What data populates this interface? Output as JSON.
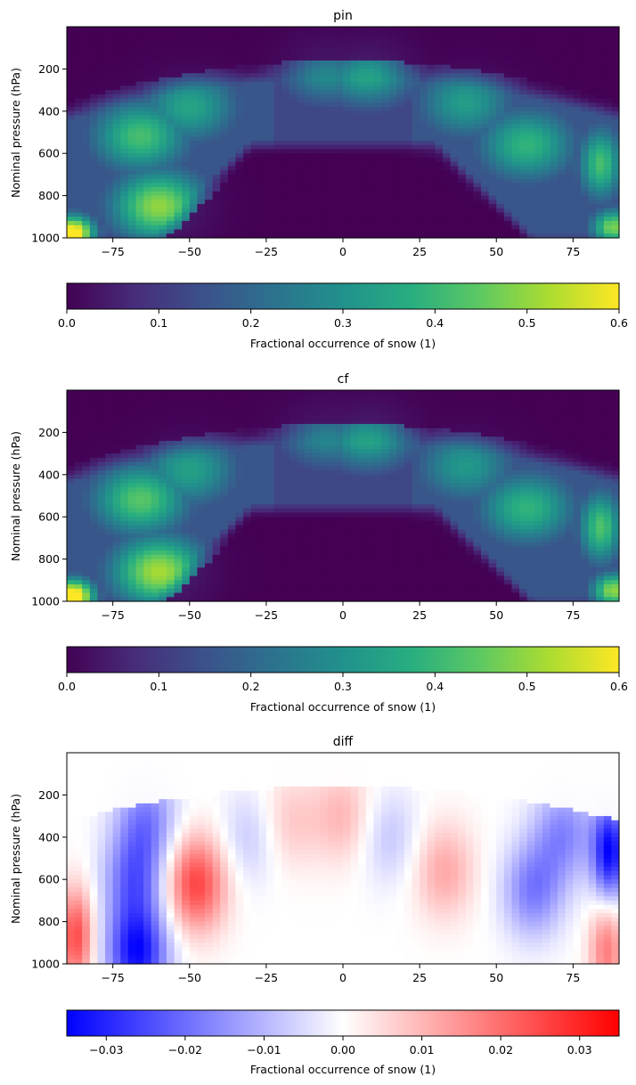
{
  "chart_data": [
    {
      "type": "heatmap",
      "title": "pin",
      "ylabel": "Nominal pressure (hPa)",
      "xlabel": "",
      "x_range": [
        -90,
        90
      ],
      "y_range": [
        0,
        1000
      ],
      "y_inverted": true,
      "x_ticks": [
        -75,
        -50,
        -25,
        0,
        25,
        50,
        75
      ],
      "x_tick_labels": [
        "−75",
        "−50",
        "−25",
        "0",
        "25",
        "50",
        "75"
      ],
      "y_ticks": [
        200,
        400,
        600,
        800,
        1000
      ],
      "y_tick_labels": [
        "200",
        "400",
        "600",
        "800",
        "1000"
      ],
      "colormap": "viridis",
      "colorbar": {
        "label": "Fractional occurrence of snow (1)",
        "range": [
          0.0,
          0.6
        ],
        "ticks": [
          0.0,
          0.1,
          0.2,
          0.3,
          0.4,
          0.5,
          0.6
        ],
        "tick_labels": [
          "0.0",
          "0.1",
          "0.2",
          "0.3",
          "0.4",
          "0.5",
          "0.6"
        ],
        "orientation": "horizontal"
      },
      "features": [
        {
          "lat": -88,
          "p": 980,
          "value": 0.58
        },
        {
          "lat": -60,
          "p": 850,
          "value": 0.42
        },
        {
          "lat": -66,
          "p": 520,
          "value": 0.34
        },
        {
          "lat": -50,
          "p": 380,
          "value": 0.27
        },
        {
          "lat": 8,
          "p": 210,
          "value": 0.3
        },
        {
          "lat": -5,
          "p": 200,
          "value": 0.24
        },
        {
          "lat": 40,
          "p": 360,
          "value": 0.25
        },
        {
          "lat": 60,
          "p": 560,
          "value": 0.31
        },
        {
          "lat": 84,
          "p": 650,
          "value": 0.34
        },
        {
          "lat": 88,
          "p": 950,
          "value": 0.4
        }
      ]
    },
    {
      "type": "heatmap",
      "title": "cf",
      "ylabel": "Nominal pressure (hPa)",
      "xlabel": "",
      "x_range": [
        -90,
        90
      ],
      "y_range": [
        0,
        1000
      ],
      "y_inverted": true,
      "x_ticks": [
        -75,
        -50,
        -25,
        0,
        25,
        50,
        75
      ],
      "x_tick_labels": [
        "−75",
        "−50",
        "−25",
        "0",
        "25",
        "50",
        "75"
      ],
      "y_ticks": [
        200,
        400,
        600,
        800,
        1000
      ],
      "y_tick_labels": [
        "200",
        "400",
        "600",
        "800",
        "1000"
      ],
      "colormap": "viridis",
      "colorbar": {
        "label": "Fractional occurrence of snow (1)",
        "range": [
          0.0,
          0.6
        ],
        "ticks": [
          0.0,
          0.1,
          0.2,
          0.3,
          0.4,
          0.5,
          0.6
        ],
        "tick_labels": [
          "0.0",
          "0.1",
          "0.2",
          "0.3",
          "0.4",
          "0.5",
          "0.6"
        ],
        "orientation": "horizontal"
      },
      "features": [
        {
          "lat": -88,
          "p": 980,
          "value": 0.6
        },
        {
          "lat": -60,
          "p": 860,
          "value": 0.44
        },
        {
          "lat": -66,
          "p": 520,
          "value": 0.36
        },
        {
          "lat": -50,
          "p": 380,
          "value": 0.26
        },
        {
          "lat": 8,
          "p": 210,
          "value": 0.3
        },
        {
          "lat": -5,
          "p": 200,
          "value": 0.23
        },
        {
          "lat": 40,
          "p": 360,
          "value": 0.24
        },
        {
          "lat": 60,
          "p": 560,
          "value": 0.31
        },
        {
          "lat": 84,
          "p": 650,
          "value": 0.35
        },
        {
          "lat": 88,
          "p": 950,
          "value": 0.42
        }
      ]
    },
    {
      "type": "heatmap",
      "title": "diff",
      "ylabel": "Nominal pressure (hPa)",
      "xlabel": "",
      "x_range": [
        -90,
        90
      ],
      "y_range": [
        0,
        1000
      ],
      "y_inverted": true,
      "x_ticks": [
        -75,
        -50,
        -25,
        0,
        25,
        50,
        75
      ],
      "x_tick_labels": [
        "−75",
        "−50",
        "−25",
        "0",
        "25",
        "50",
        "75"
      ],
      "y_ticks": [
        200,
        400,
        600,
        800,
        1000
      ],
      "y_tick_labels": [
        "200",
        "400",
        "600",
        "800",
        "1000"
      ],
      "colormap": "bwr",
      "colorbar": {
        "label": "Fractional occurrence of snow (1)",
        "range": [
          -0.035,
          0.035
        ],
        "ticks": [
          -0.03,
          -0.02,
          -0.01,
          0.0,
          0.01,
          0.02,
          0.03
        ],
        "tick_labels": [
          "−0.03",
          "−0.02",
          "−0.01",
          "0.00",
          "0.01",
          "0.02",
          "0.03"
        ],
        "orientation": "horizontal"
      },
      "features": [
        {
          "lat": -87,
          "p": 870,
          "value": 0.025
        },
        {
          "lat": -67,
          "p": 950,
          "value": -0.033
        },
        {
          "lat": -68,
          "p": 600,
          "value": -0.02
        },
        {
          "lat": -64,
          "p": 320,
          "value": -0.017
        },
        {
          "lat": -48,
          "p": 620,
          "value": 0.026
        },
        {
          "lat": -30,
          "p": 400,
          "value": -0.008
        },
        {
          "lat": -18,
          "p": 330,
          "value": 0.008
        },
        {
          "lat": 0,
          "p": 300,
          "value": 0.01
        },
        {
          "lat": 15,
          "p": 400,
          "value": -0.008
        },
        {
          "lat": 33,
          "p": 560,
          "value": 0.012
        },
        {
          "lat": 62,
          "p": 650,
          "value": -0.018
        },
        {
          "lat": 72,
          "p": 380,
          "value": -0.016
        },
        {
          "lat": 87,
          "p": 470,
          "value": -0.034
        },
        {
          "lat": 86,
          "p": 930,
          "value": 0.018
        }
      ]
    }
  ]
}
